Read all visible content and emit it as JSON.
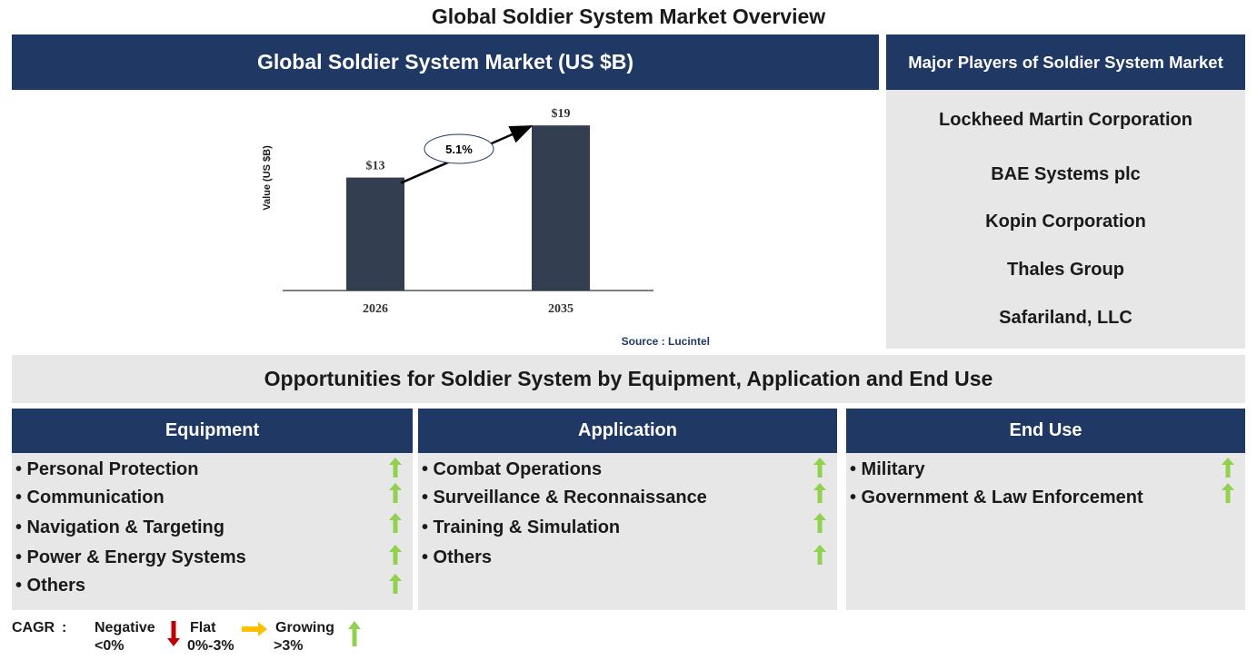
{
  "page_title": "Global Soldier System Market Overview",
  "chart_panel": {
    "header": "Global Soldier System Market (US $B)",
    "source": "Source : Lucintel"
  },
  "chart_data": {
    "type": "bar",
    "categories": [
      "2026",
      "2035"
    ],
    "values": [
      13,
      19
    ],
    "value_labels": [
      "$13",
      "$19"
    ],
    "ylabel": "Value (US $B)",
    "cagr_label": "5.1%",
    "bar_color": "#333f50",
    "ylim": [
      0,
      21
    ]
  },
  "players": {
    "header": "Major Players of Soldier System Market",
    "items": [
      "Lockheed Martin Corporation",
      "BAE Systems plc",
      "Kopin Corporation",
      "Thales Group",
      "Safariland, LLC"
    ]
  },
  "opportunities_title": "Opportunities for Soldier System by Equipment, Application and End Use",
  "segments": [
    {
      "title": "Equipment",
      "items": [
        "• Personal Protection",
        "• Communication",
        "• Navigation & Targeting",
        "• Power & Energy Systems",
        "• Others"
      ],
      "trend": [
        "growing",
        "growing",
        "growing",
        "growing",
        "growing"
      ]
    },
    {
      "title": "Application",
      "items": [
        "• Combat Operations",
        "• Surveillance & Reconnaissance",
        "• Training & Simulation",
        "• Others"
      ],
      "trend": [
        "growing",
        "growing",
        "growing",
        "growing"
      ]
    },
    {
      "title": "End Use",
      "items": [
        "• Military",
        "• Government & Law Enforcement"
      ],
      "trend": [
        "growing",
        "growing"
      ]
    }
  ],
  "legend": {
    "cagr_label": "CAGR",
    "colon": ":",
    "negative": {
      "label": "Negative",
      "range": "<0%"
    },
    "flat": {
      "label": "Flat",
      "range": "0%-3%"
    },
    "growing": {
      "label": "Growing",
      "range": ">3%"
    }
  },
  "colors": {
    "navy": "#1f3864",
    "panel_grey": "#e7e7e7",
    "bar": "#333f50",
    "up_arrow": "#92d050",
    "down_arrow": "#c00000",
    "flat_arrow": "#ffc000"
  }
}
